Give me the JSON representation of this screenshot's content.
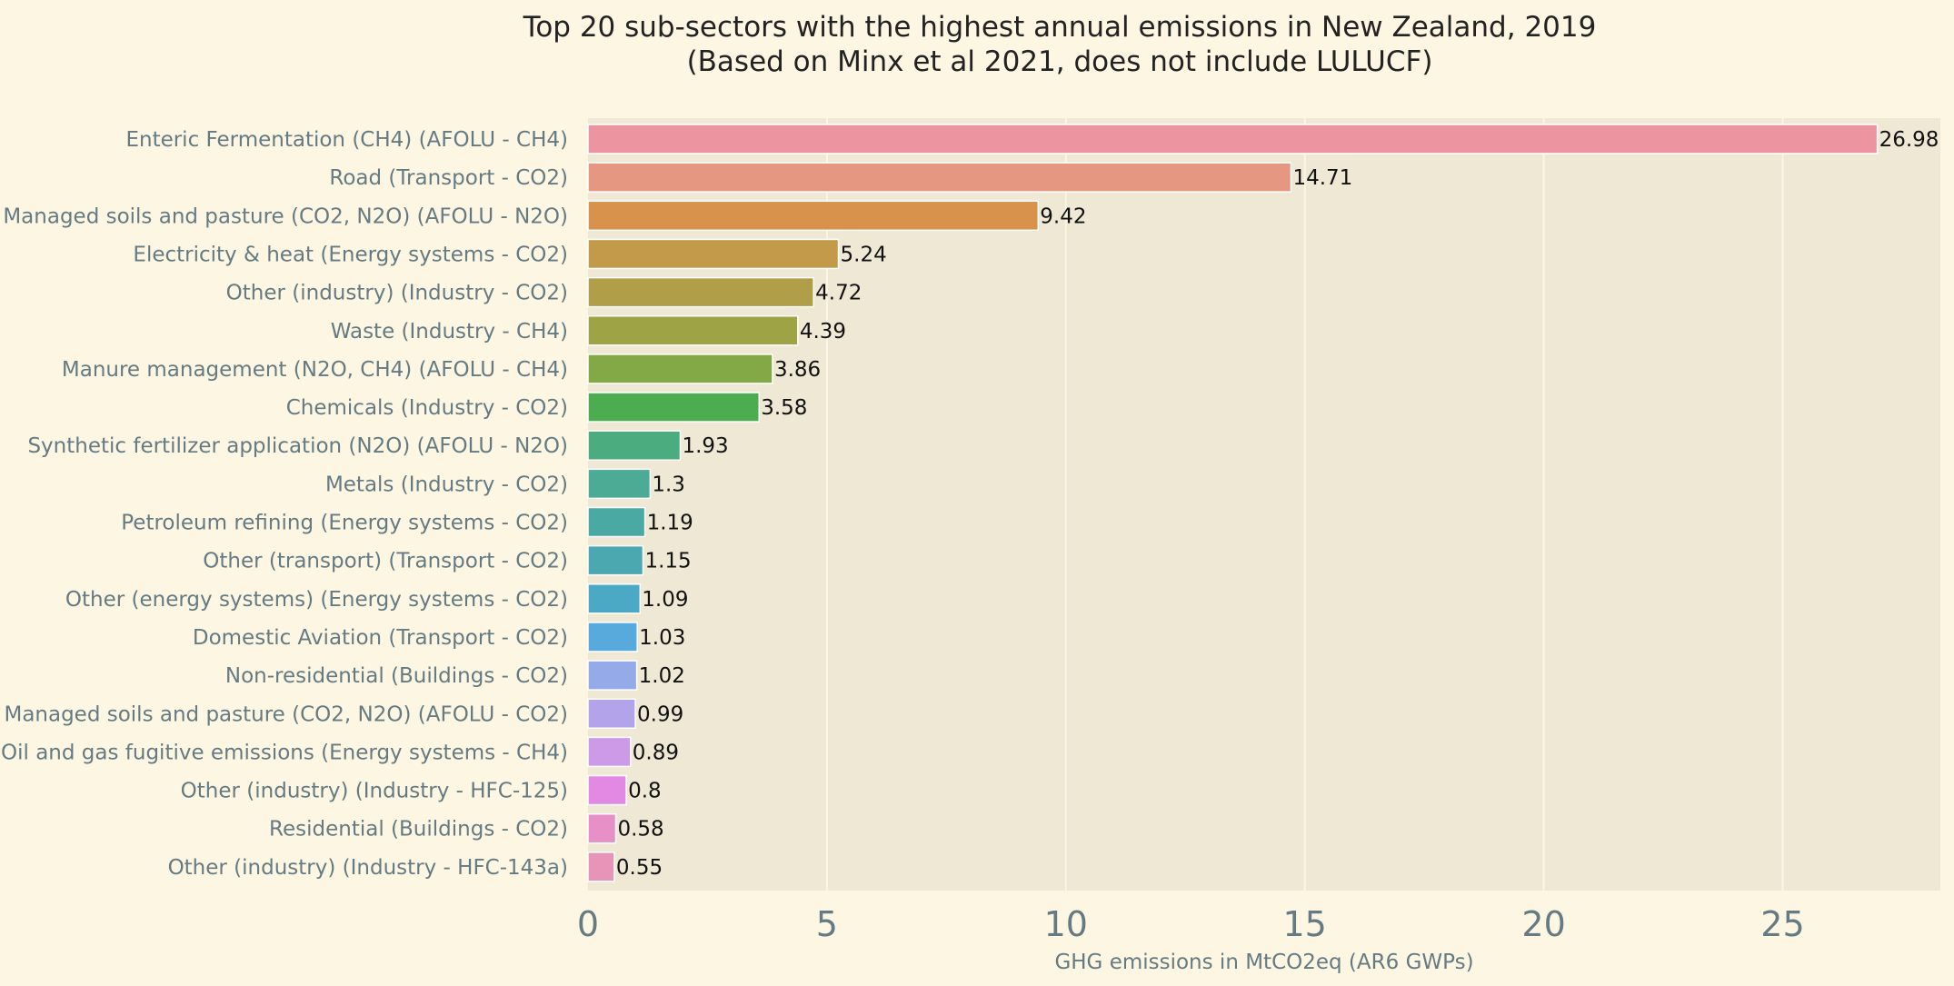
{
  "chart_data": {
    "type": "bar",
    "orientation": "horizontal",
    "title_lines": [
      "Top 20 sub-sectors with the highest annual emissions in New Zealand, 2019",
      "(Based on Minx et al 2021, does not include LULUCF)"
    ],
    "xlabel": "GHG emissions in MtCO2eq (AR6 GWPs)",
    "ylabel": "",
    "xlim": [
      0,
      28.3
    ],
    "xticks": [
      0,
      5,
      10,
      15,
      20,
      25
    ],
    "xtick_labels": [
      "0",
      "5",
      "10",
      "15",
      "20",
      "25"
    ],
    "grid": true,
    "categories": [
      "Enteric Fermentation (CH4) (AFOLU - CH4)",
      "Road (Transport - CO2)",
      "Managed soils and pasture (CO2, N2O) (AFOLU - N2O)",
      "Electricity & heat (Energy systems - CO2)",
      "Other (industry) (Industry - CO2)",
      "Waste (Industry - CH4)",
      "Manure management (N2O, CH4) (AFOLU - CH4)",
      "Chemicals (Industry - CO2)",
      "Synthetic fertilizer application (N2O) (AFOLU - N2O)",
      "Metals (Industry - CO2)",
      "Petroleum refining (Energy systems - CO2)",
      "Other (transport) (Transport - CO2)",
      "Other (energy systems) (Energy systems - CO2)",
      "Domestic Aviation (Transport - CO2)",
      "Non-residential (Buildings - CO2)",
      "Managed soils and pasture (CO2, N2O) (AFOLU - CO2)",
      "Oil and gas fugitive emissions (Energy systems - CH4)",
      "Other (industry) (Industry - HFC-125)",
      "Residential (Buildings - CO2)",
      "Other (industry) (Industry - HFC-143a)"
    ],
    "values": [
      26.98,
      14.71,
      9.42,
      5.24,
      4.72,
      4.39,
      3.86,
      3.58,
      1.93,
      1.3,
      1.19,
      1.15,
      1.09,
      1.03,
      1.02,
      0.99,
      0.89,
      0.8,
      0.58,
      0.55
    ],
    "value_labels": [
      "26.98",
      "14.71",
      "9.42",
      "5.24",
      "4.72",
      "4.39",
      "3.86",
      "3.58",
      "1.93",
      "1.3",
      "1.19",
      "1.15",
      "1.09",
      "1.03",
      "1.02",
      "0.99",
      "0.89",
      "0.8",
      "0.58",
      "0.55"
    ],
    "colors": [
      "#ec95a0",
      "#e69782",
      "#d9924b",
      "#c29a4a",
      "#b09f48",
      "#9ea346",
      "#83a946",
      "#4bad4f",
      "#4bac7f",
      "#4bab94",
      "#4ba9a3",
      "#4ba8b1",
      "#4ca9c5",
      "#58aadc",
      "#95aae8",
      "#b3a3ea",
      "#cc9ae6",
      "#e289e3",
      "#e790c7",
      "#e695b8"
    ],
    "background": "#fdf6e3",
    "plot_background": "#eee8d5",
    "grid_color": "#fbf5e4"
  }
}
